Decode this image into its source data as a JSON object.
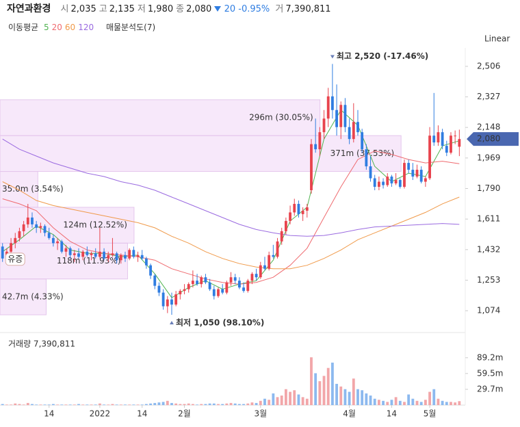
{
  "chart_data": {
    "type": "candlestick",
    "header": {
      "name": "자연과환경",
      "fields": [
        {
          "label": "시",
          "value": "2,035"
        },
        {
          "label": "고",
          "value": "2,135"
        },
        {
          "label": "저",
          "value": "1,980"
        },
        {
          "label": "종",
          "value": "2,080"
        }
      ],
      "change": {
        "direction": "down",
        "amount": "20",
        "percent": "-0.95%"
      },
      "volume": {
        "label": "거",
        "value": "7,390,811"
      }
    },
    "legend_title": "이동평균",
    "profile_label": "매물분석도(7)",
    "scale_label": "Linear",
    "up_color": "#e8434d",
    "down_color": "#2f7de1",
    "volume_up_color": "#f2a6a9",
    "volume_down_color": "#8cb9ef",
    "xlim": [
      -0.6,
      109.4
    ],
    "xticks": [
      {
        "value": 11,
        "label": "14"
      },
      {
        "value": 23,
        "label": "2022"
      },
      {
        "value": 33,
        "label": "14"
      },
      {
        "value": 43,
        "label": "2월"
      },
      {
        "value": 61,
        "label": "3월"
      },
      {
        "value": 82,
        "label": "4월"
      },
      {
        "value": 92,
        "label": "14"
      },
      {
        "value": 101,
        "label": "5월"
      }
    ],
    "ylim": [
      970,
      2614
    ],
    "yticks": [
      {
        "value": 1074,
        "label": "1,074"
      },
      {
        "value": 1253,
        "label": "1,253"
      },
      {
        "value": 1432,
        "label": "1,432"
      },
      {
        "value": 1611,
        "label": "1,611"
      },
      {
        "value": 1790,
        "label": "1,790"
      },
      {
        "value": 1969,
        "label": "1,969"
      },
      {
        "value": 2148,
        "label": "2,148"
      },
      {
        "value": 2327,
        "label": "2,327"
      },
      {
        "value": 2506,
        "label": "2,506"
      }
    ],
    "last_price": {
      "value": 2080,
      "label": "2,080"
    },
    "candles": {
      "open": [
        1450,
        1380,
        1420,
        1470,
        1500,
        1540,
        1580,
        1620,
        1580,
        1560,
        1570,
        1530,
        1500,
        1470,
        1480,
        1420,
        1440,
        1400,
        1410,
        1390,
        1420,
        1400,
        1410,
        1390,
        1420,
        1380,
        1400,
        1410,
        1370,
        1400,
        1380,
        1430,
        1390,
        1400,
        1380,
        1340,
        1280,
        1220,
        1180,
        1100,
        1140,
        1110,
        1170,
        1190,
        1200,
        1230,
        1250,
        1230,
        1270,
        1240,
        1200,
        1160,
        1200,
        1180,
        1240,
        1270,
        1250,
        1210,
        1190,
        1250,
        1290,
        1270,
        1340,
        1320,
        1400,
        1390,
        1480,
        1540,
        1600,
        1650,
        1700,
        1640,
        1660,
        1780,
        2050,
        2020,
        2120,
        2200,
        2330,
        2250,
        2150,
        2280,
        2150,
        2080,
        2180,
        2120,
        2020,
        1920,
        1850,
        1800,
        1830,
        1810,
        1860,
        1820,
        1840,
        1800,
        1940,
        1900,
        1860,
        1900,
        1830,
        1850,
        2100,
        2060,
        2120,
        2040,
        2000,
        2100,
        2035
      ],
      "high": [
        1470,
        1440,
        1500,
        1530,
        1560,
        1600,
        1700,
        1650,
        1600,
        1590,
        1580,
        1560,
        1520,
        1500,
        1490,
        1460,
        1450,
        1430,
        1440,
        1430,
        1450,
        1420,
        1440,
        1560,
        1440,
        1420,
        1500,
        1420,
        1410,
        1420,
        1440,
        1450,
        1420,
        1430,
        1390,
        1350,
        1290,
        1240,
        1200,
        1160,
        1180,
        1190,
        1200,
        1230,
        1240,
        1310,
        1290,
        1280,
        1290,
        1260,
        1220,
        1210,
        1230,
        1250,
        1300,
        1290,
        1270,
        1240,
        1260,
        1300,
        1320,
        1360,
        1390,
        1420,
        1460,
        1500,
        1560,
        1620,
        1690,
        1730,
        1720,
        1680,
        1700,
        2080,
        2200,
        2150,
        2250,
        2380,
        2520,
        2400,
        2300,
        2320,
        2200,
        2290,
        2250,
        2140,
        2050,
        1980,
        1870,
        1860,
        1850,
        1880,
        1870,
        1880,
        1850,
        1960,
        1960,
        1940,
        1930,
        1920,
        1860,
        2150,
        2350,
        2160,
        2140,
        2070,
        2120,
        2130,
        2135
      ],
      "low": [
        1360,
        1350,
        1400,
        1440,
        1480,
        1510,
        1560,
        1560,
        1530,
        1530,
        1510,
        1490,
        1450,
        1430,
        1410,
        1390,
        1380,
        1360,
        1380,
        1370,
        1390,
        1370,
        1380,
        1380,
        1370,
        1360,
        1390,
        1350,
        1350,
        1360,
        1370,
        1380,
        1360,
        1370,
        1320,
        1260,
        1200,
        1160,
        1080,
        1060,
        1050,
        1100,
        1140,
        1170,
        1180,
        1210,
        1220,
        1210,
        1230,
        1190,
        1140,
        1150,
        1170,
        1170,
        1220,
        1230,
        1200,
        1180,
        1180,
        1230,
        1250,
        1260,
        1310,
        1310,
        1380,
        1380,
        1460,
        1520,
        1580,
        1630,
        1620,
        1600,
        1620,
        1760,
        2000,
        1980,
        2080,
        2150,
        2200,
        2100,
        2080,
        2120,
        2050,
        2060,
        2100,
        2000,
        1900,
        1830,
        1780,
        1780,
        1790,
        1800,
        1800,
        1810,
        1790,
        1790,
        1880,
        1840,
        1850,
        1820,
        1800,
        1840,
        2040,
        2040,
        2020,
        1980,
        1990,
        2050,
        1980
      ],
      "close": [
        1380,
        1420,
        1470,
        1500,
        1540,
        1580,
        1620,
        1580,
        1560,
        1570,
        1530,
        1500,
        1470,
        1480,
        1420,
        1440,
        1400,
        1410,
        1390,
        1420,
        1400,
        1410,
        1390,
        1420,
        1380,
        1400,
        1410,
        1370,
        1400,
        1380,
        1430,
        1390,
        1400,
        1380,
        1340,
        1280,
        1220,
        1180,
        1100,
        1140,
        1110,
        1170,
        1190,
        1200,
        1230,
        1250,
        1230,
        1270,
        1240,
        1200,
        1160,
        1200,
        1180,
        1240,
        1270,
        1250,
        1210,
        1190,
        1250,
        1290,
        1270,
        1340,
        1320,
        1400,
        1390,
        1480,
        1540,
        1600,
        1650,
        1700,
        1640,
        1660,
        1680,
        2050,
        2020,
        2120,
        2200,
        2330,
        2250,
        2150,
        2280,
        2150,
        2080,
        2180,
        2120,
        2020,
        1920,
        1850,
        1800,
        1830,
        1810,
        1860,
        1820,
        1840,
        1800,
        1940,
        1900,
        1860,
        1900,
        1830,
        1850,
        2100,
        2060,
        2120,
        2040,
        2000,
        2100,
        2100,
        2080
      ],
      "volume": [
        2,
        1,
        1,
        3,
        2,
        1,
        4,
        2,
        1,
        1,
        1,
        1,
        2,
        1,
        1,
        1,
        1,
        1,
        2,
        1,
        1,
        1,
        1,
        3,
        1,
        1,
        2,
        1,
        1,
        1,
        1,
        1,
        1,
        1,
        2,
        3,
        4,
        5,
        6,
        8,
        4,
        3,
        2,
        2,
        3,
        2,
        1,
        2,
        2,
        3,
        3,
        2,
        2,
        3,
        4,
        3,
        2,
        2,
        3,
        5,
        4,
        8,
        12,
        10,
        22,
        15,
        18,
        30,
        25,
        28,
        20,
        15,
        12,
        90,
        60,
        45,
        55,
        70,
        80,
        40,
        35,
        30,
        25,
        50,
        30,
        28,
        22,
        18,
        12,
        10,
        8,
        6,
        10,
        15,
        8,
        6,
        20,
        12,
        8,
        6,
        10,
        25,
        30,
        12,
        8,
        6,
        6,
        5,
        7.4
      ]
    },
    "series": [
      {
        "name": "5",
        "color": "#4fb34f",
        "x": [
          0,
          4,
          8,
          12,
          16,
          20,
          24,
          28,
          32,
          36,
          40,
          44,
          48,
          52,
          56,
          60,
          64,
          68,
          72,
          76,
          80,
          84,
          88,
          92,
          96,
          100,
          104,
          108
        ],
        "values": [
          1420,
          1490,
          1570,
          1520,
          1430,
          1410,
          1410,
          1390,
          1400,
          1290,
          1150,
          1210,
          1250,
          1200,
          1230,
          1250,
          1370,
          1600,
          1680,
          2080,
          2250,
          2160,
          1920,
          1830,
          1880,
          1860,
          2040,
          2070
        ]
      },
      {
        "name": "20",
        "color": "#ef6a6f",
        "x": [
          0,
          4,
          8,
          12,
          16,
          20,
          24,
          28,
          32,
          36,
          40,
          44,
          48,
          52,
          56,
          60,
          64,
          68,
          72,
          76,
          80,
          84,
          88,
          92,
          96,
          100,
          104,
          108
        ],
        "values": [
          1730,
          1700,
          1660,
          1560,
          1480,
          1430,
          1410,
          1400,
          1390,
          1370,
          1320,
          1290,
          1260,
          1240,
          1230,
          1240,
          1270,
          1340,
          1440,
          1620,
          1800,
          1960,
          2010,
          1990,
          1960,
          1940,
          1950,
          1935
        ]
      },
      {
        "name": "60",
        "color": "#f09a4a",
        "x": [
          0,
          4,
          8,
          12,
          16,
          20,
          24,
          28,
          32,
          36,
          40,
          44,
          48,
          52,
          56,
          60,
          64,
          68,
          72,
          76,
          80,
          84,
          88,
          92,
          96,
          100,
          104,
          108
        ],
        "values": [
          1830,
          1780,
          1720,
          1690,
          1670,
          1650,
          1630,
          1610,
          1590,
          1560,
          1510,
          1470,
          1420,
          1380,
          1350,
          1330,
          1320,
          1320,
          1340,
          1380,
          1430,
          1490,
          1530,
          1570,
          1610,
          1650,
          1700,
          1740
        ]
      },
      {
        "name": "120",
        "color": "#9a6ae0",
        "x": [
          0,
          4,
          8,
          12,
          16,
          20,
          24,
          28,
          32,
          36,
          40,
          44,
          48,
          52,
          56,
          60,
          64,
          68,
          72,
          76,
          80,
          84,
          88,
          92,
          96,
          100,
          104,
          108
        ],
        "values": [
          2080,
          2020,
          1980,
          1940,
          1910,
          1880,
          1860,
          1830,
          1810,
          1780,
          1740,
          1700,
          1660,
          1620,
          1580,
          1550,
          1530,
          1515,
          1510,
          1515,
          1530,
          1550,
          1565,
          1570,
          1575,
          1580,
          1585,
          1580
        ]
      }
    ],
    "profile": {
      "low": [
        1050,
        1260,
        1470,
        1680,
        1890,
        2100
      ],
      "high": [
        1260,
        1470,
        1680,
        1890,
        2100,
        2310
      ],
      "values": [
        42.7,
        118,
        124,
        35.0,
        371,
        296
      ],
      "value_labels": [
        "42.7m (4.33%)",
        "118m (11.93%)",
        "124m (12.52%)",
        "35.0m (3.54%)",
        "371m (37.53%)",
        "296m (30.05%)"
      ]
    },
    "max": {
      "index": 78,
      "value": 2520,
      "label": "최고 2,520 (-17.46%)"
    },
    "min": {
      "index": 40,
      "value": 1050,
      "label": "최저 1,050 (98.10%)"
    },
    "events": [
      {
        "index": 3,
        "label": "유증"
      }
    ],
    "volume_title": "거래량 7,390,811",
    "volume_ylim": [
      0,
      134
    ],
    "volume_yticks": [
      {
        "value": 29.7,
        "label": "29.7m"
      },
      {
        "value": 59.5,
        "label": "59.5m"
      },
      {
        "value": 89.2,
        "label": "89.2m"
      }
    ]
  }
}
